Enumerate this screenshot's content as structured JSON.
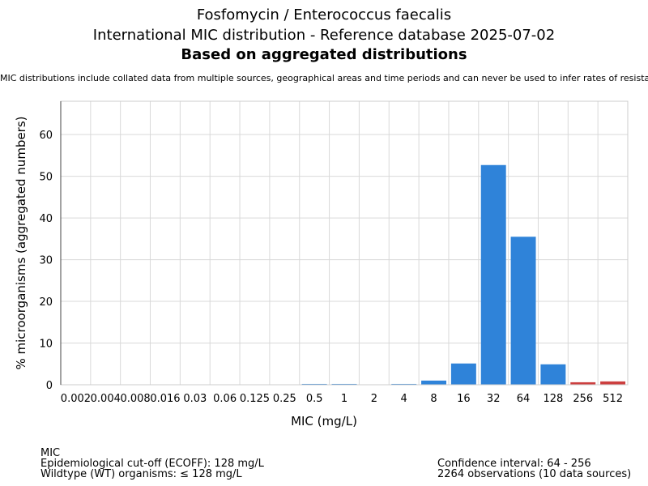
{
  "header": {
    "title_line1": "Fosfomycin / Enterococcus faecalis",
    "title_line2": "International MIC distribution - Reference database 2025-07-02",
    "title_line3": "Based on aggregated distributions",
    "note": "MIC distributions include collated data from multiple sources, geographical areas and time periods and can never be used to infer rates of resistance"
  },
  "chart_data": {
    "type": "bar",
    "title": "Fosfomycin / Enterococcus faecalis",
    "xlabel": "MIC (mg/L)",
    "ylabel": "% microorganisms (aggregated numbers)",
    "ylim": [
      0,
      68
    ],
    "yticks": [
      0,
      10,
      20,
      30,
      40,
      50,
      60
    ],
    "grid": true,
    "categories": [
      "0.002",
      "0.004",
      "0.008",
      "0.016",
      "0.03",
      "0.06",
      "0.125",
      "0.25",
      "0.5",
      "1",
      "2",
      "4",
      "8",
      "16",
      "32",
      "64",
      "128",
      "256",
      "512"
    ],
    "values": [
      0,
      0,
      0,
      0,
      0,
      0,
      0,
      0,
      0.2,
      0.2,
      0,
      0.2,
      1.0,
      5.1,
      52.7,
      35.5,
      4.9,
      0.6,
      0.8
    ],
    "colors": {
      "wildtype": "#2f83d9",
      "non_wildtype": "#cc3f3f"
    },
    "bar_class": [
      "wt",
      "wt",
      "wt",
      "wt",
      "wt",
      "wt",
      "wt",
      "wt",
      "wt",
      "wt",
      "wt",
      "wt",
      "wt",
      "wt",
      "wt",
      "wt",
      "wt",
      "nwt",
      "nwt"
    ]
  },
  "footer": {
    "left_lines": [
      "MIC",
      "Epidemiological cut-off (ECOFF): 128 mg/L",
      "Wildtype (WT) organisms: ≤ 128 mg/L"
    ],
    "right_lines": [
      "Confidence interval: 64 - 256",
      "2264 observations (10 data sources)"
    ]
  }
}
